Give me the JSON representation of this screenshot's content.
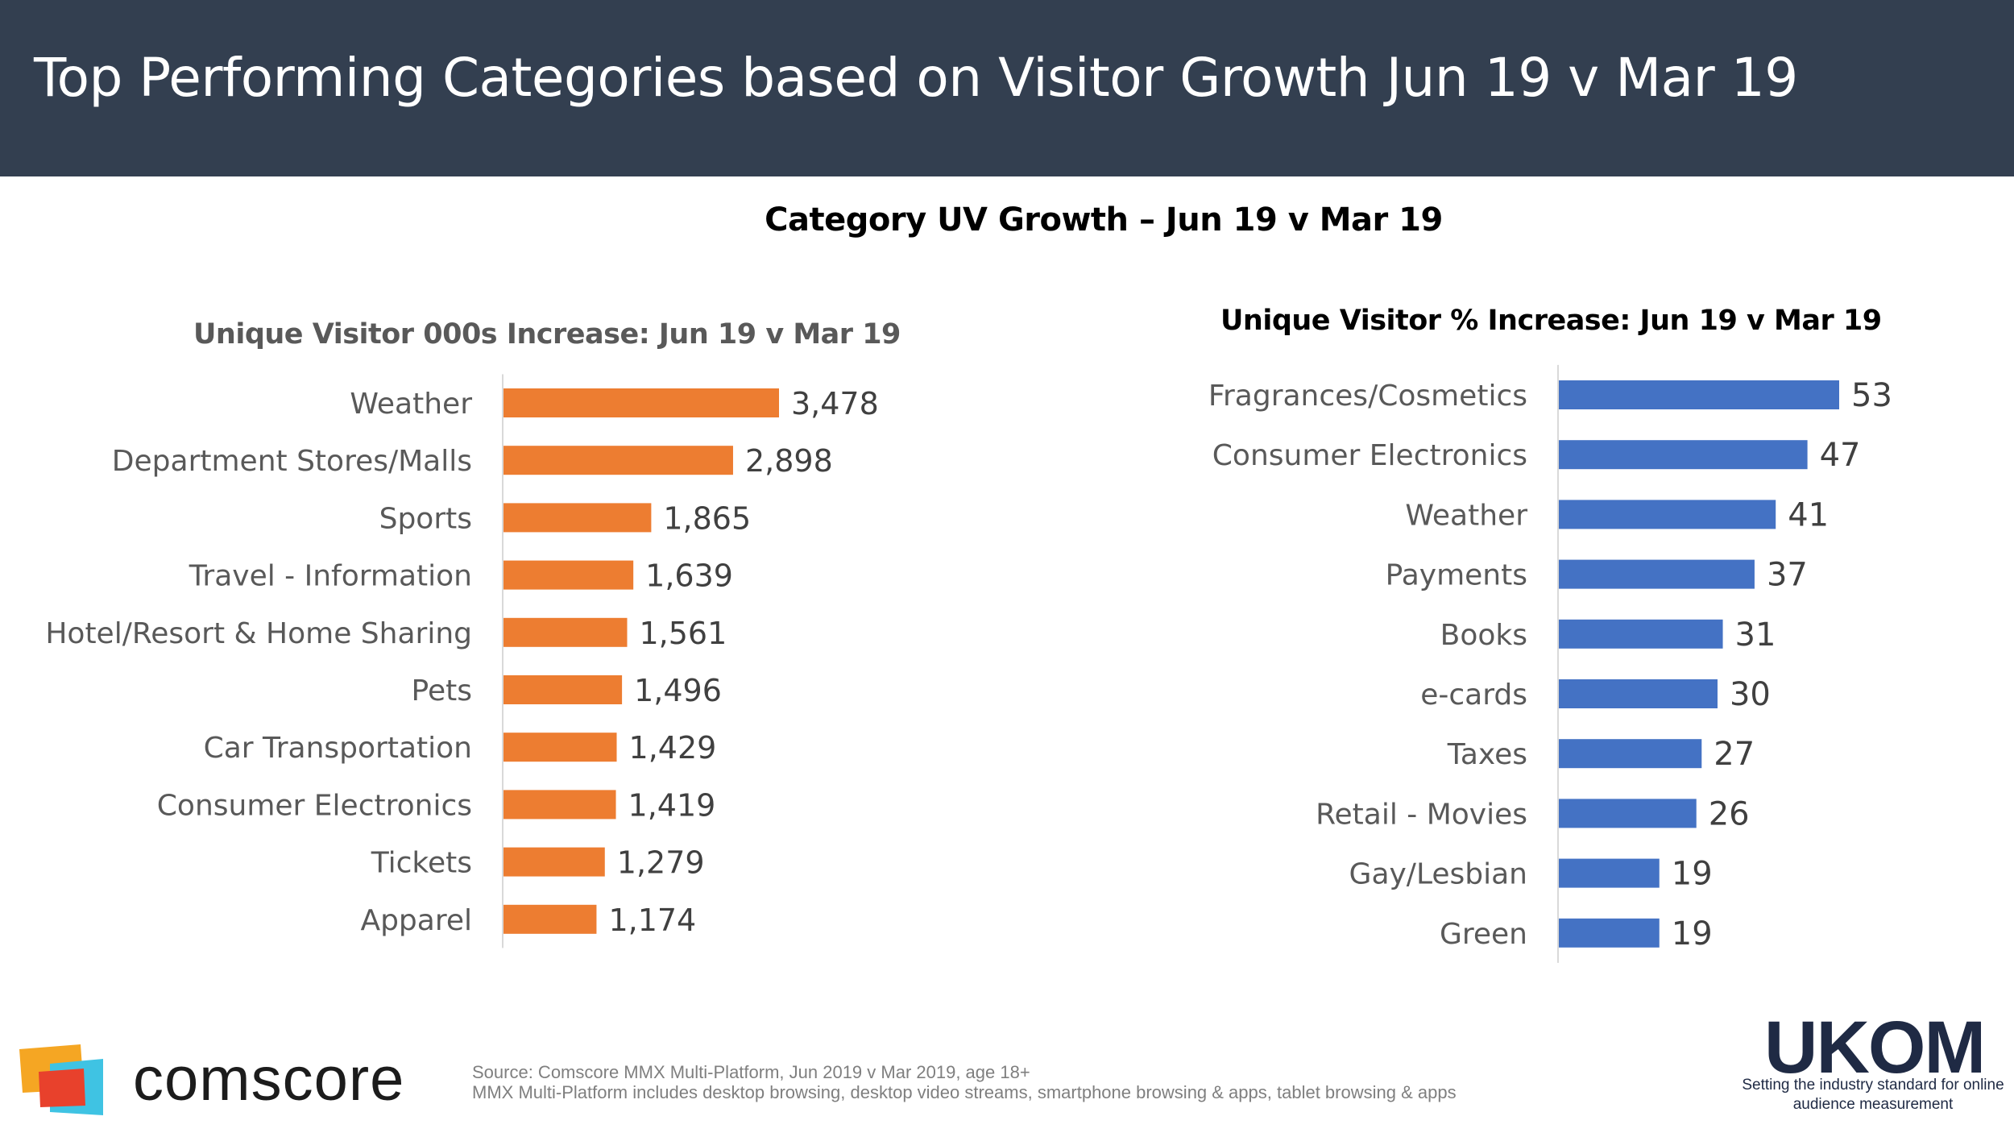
{
  "header": {
    "title": "Top Performing Categories based on Visitor Growth Jun 19 v Mar 19"
  },
  "main_title": "Category UV Growth – Jun 19 v Mar 19",
  "colors": {
    "header_bg": "#333f50",
    "left_bars": "#ed7d31",
    "right_bars": "#4472c4"
  },
  "chart_data": [
    {
      "type": "bar",
      "orientation": "horizontal",
      "title": "Unique Visitor 000s Increase: Jun 19 v Mar 19",
      "categories": [
        "Weather",
        "Department Stores/Malls",
        "Sports",
        "Travel - Information",
        "Hotel/Resort & Home Sharing",
        "Pets",
        "Car Transportation",
        "Consumer Electronics",
        "Tickets",
        "Apparel"
      ],
      "values": [
        3478,
        2898,
        1865,
        1639,
        1561,
        1496,
        1429,
        1419,
        1279,
        1174
      ],
      "labels": [
        "3,478",
        "2,898",
        "1,865",
        "1,639",
        "1,561",
        "1,496",
        "1,429",
        "1,419",
        "1,279",
        "1,174"
      ],
      "xlim": [
        0,
        3478
      ],
      "grid": false
    },
    {
      "type": "bar",
      "orientation": "horizontal",
      "title": "Unique Visitor % Increase: Jun 19 v Mar 19",
      "categories": [
        "Fragrances/Cosmetics",
        "Consumer Electronics",
        "Weather",
        "Payments",
        "Books",
        "e-cards",
        "Taxes",
        "Retail - Movies",
        "Gay/Lesbian",
        "Green"
      ],
      "values": [
        53,
        47,
        41,
        37,
        31,
        30,
        27,
        26,
        19,
        19
      ],
      "labels": [
        "53",
        "47",
        "41",
        "37",
        "31",
        "30",
        "27",
        "26",
        "19",
        "19"
      ],
      "xlim": [
        0,
        53
      ],
      "grid": false
    }
  ],
  "footer": {
    "source_line1": "Source: Comscore MMX Multi-Platform,  Jun 2019 v Mar 2019, age 18+",
    "source_line2": "MMX Multi-Platform includes desktop browsing, desktop video streams, smartphone browsing & apps, tablet browsing & apps",
    "comscore_logo_text": "comscore",
    "ukom_logo_text": "UKOM",
    "ukom_tagline": "Setting the industry standard for online audience measurement"
  }
}
